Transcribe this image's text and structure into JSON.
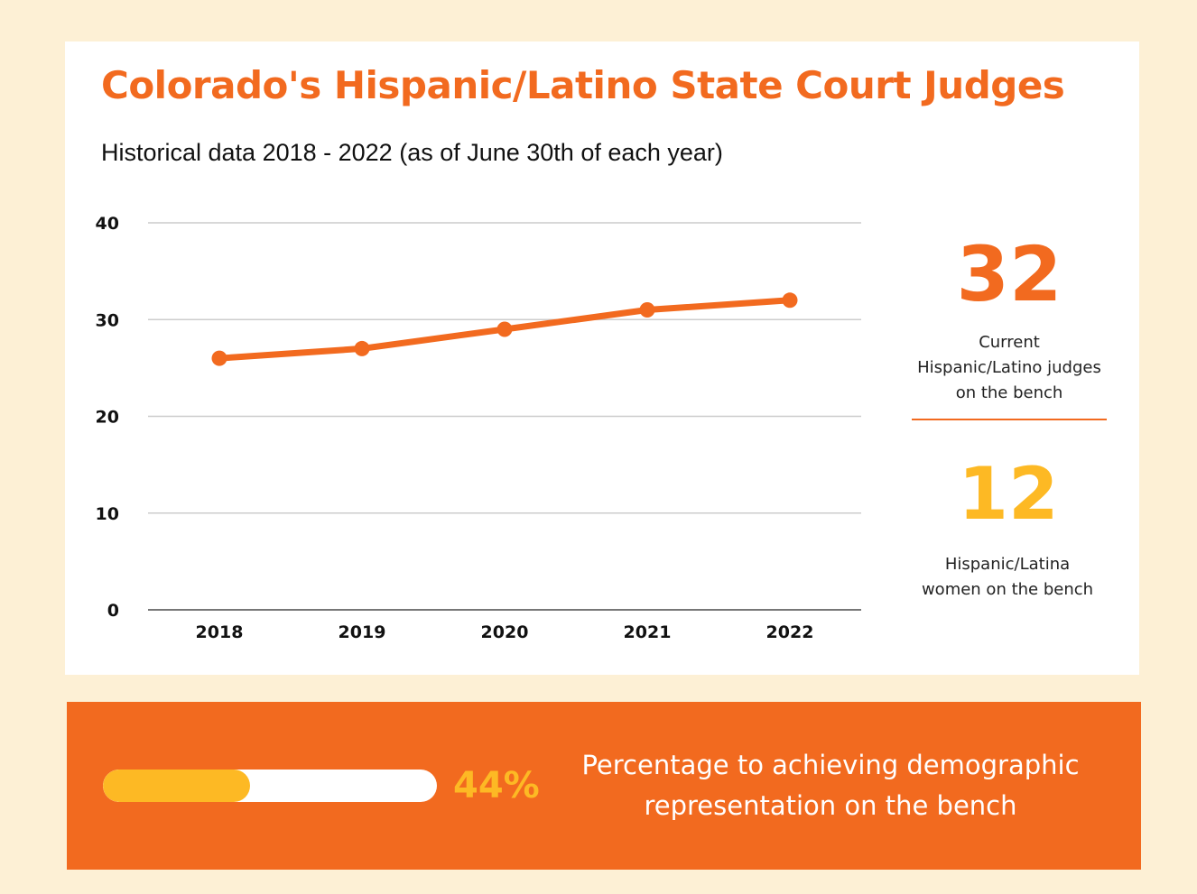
{
  "title": "Colorado's Hispanic/Latino State Court Judges",
  "subtitle": "Historical data 2018 - 2022 (as of June 30th of each year)",
  "colors": {
    "background": "#fdf0d5",
    "accent_orange": "#f26a1f",
    "accent_yellow": "#fdb924",
    "gridline": "#cccccc"
  },
  "chart_data": {
    "type": "line",
    "x": [
      "2018",
      "2019",
      "2020",
      "2021",
      "2022"
    ],
    "series": [
      {
        "values": [
          26,
          27,
          29,
          31,
          32
        ]
      }
    ],
    "yticks": [
      "0",
      "10",
      "20",
      "30",
      "40"
    ],
    "ylim": [
      0,
      40
    ],
    "grid": true,
    "xlabel": "",
    "ylabel": ""
  },
  "stats": {
    "current": {
      "value": "32",
      "label_lines": [
        "Current",
        "Hispanic/Latino judges",
        "on the bench"
      ]
    },
    "women": {
      "value": "12",
      "label_lines": [
        "Hispanic/Latina",
        "women on the bench"
      ]
    }
  },
  "progress": {
    "percent": 44,
    "label": "44%",
    "text_lines": [
      "Percentage to achieving demographic",
      "representation on the bench"
    ]
  }
}
